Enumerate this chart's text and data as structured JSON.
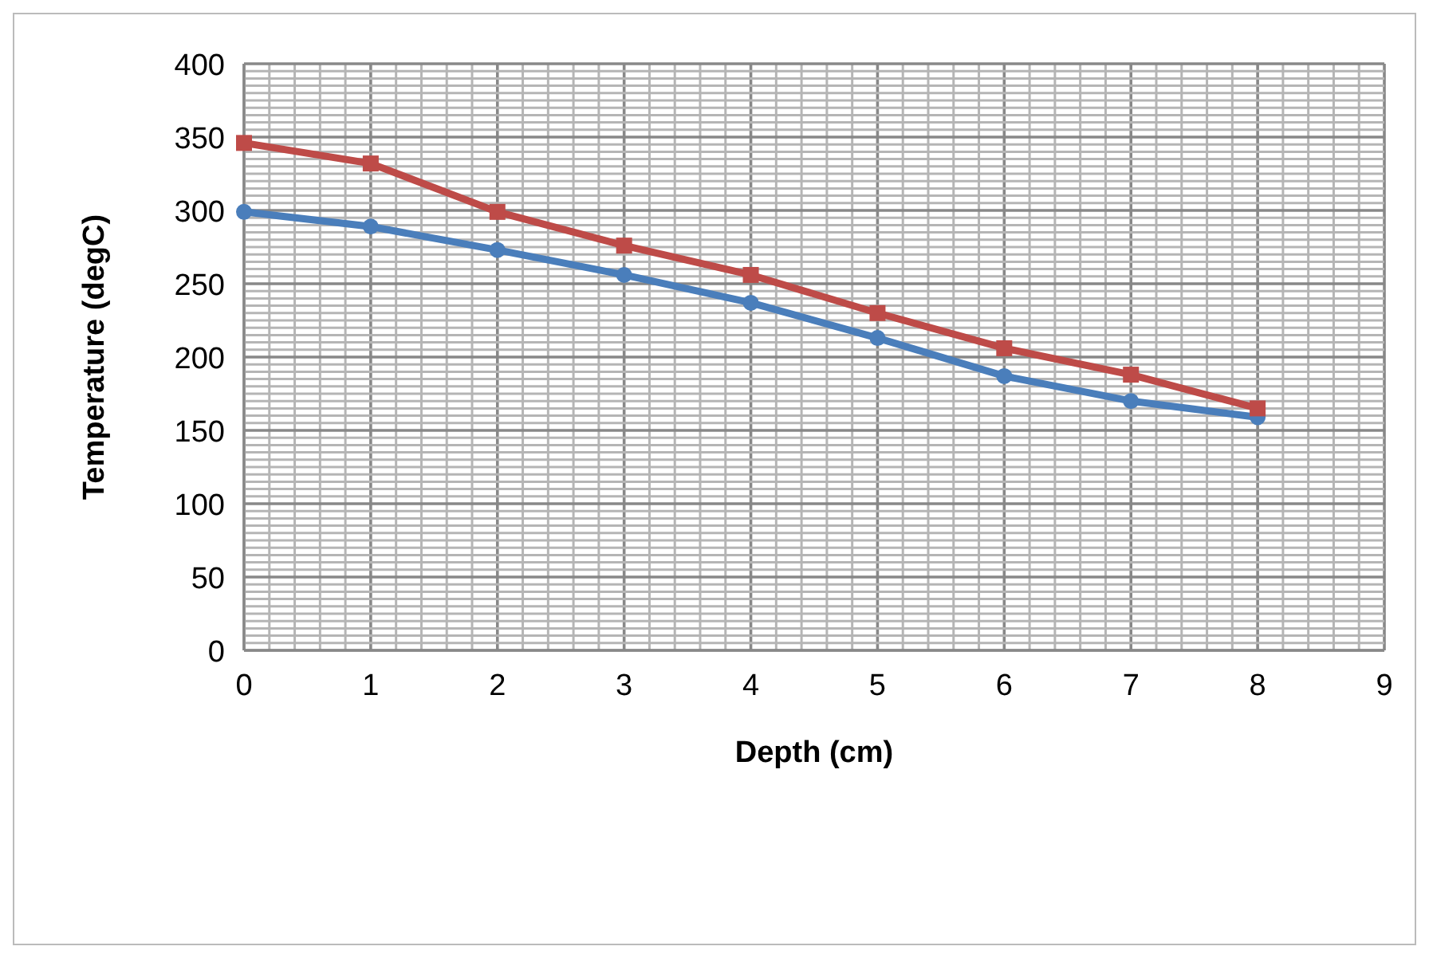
{
  "chart_data": {
    "type": "line",
    "xlabel": "Depth (cm)",
    "ylabel": "Temperature (degC)",
    "x": [
      0,
      1,
      2,
      3,
      4,
      5,
      6,
      7,
      8
    ],
    "series": [
      {
        "color": "#4a7ebb",
        "marker": "circle",
        "values": [
          299,
          289,
          273,
          256,
          237,
          213,
          187,
          170,
          159
        ]
      },
      {
        "color": "#be4b48",
        "marker": "square",
        "values": [
          346,
          332,
          299,
          276,
          256,
          230,
          206,
          188,
          165
        ]
      }
    ],
    "xlim": [
      0,
      9
    ],
    "ylim": [
      0,
      400
    ],
    "grid": true,
    "legend": false,
    "line_style": "solid",
    "xticks": [
      0,
      {
        "value": 0.2,
        "label": null
      },
      {
        "value": 0.4,
        "label": null
      },
      {
        "value": 0.6,
        "label": null
      },
      {
        "value": 0.8,
        "label": null
      },
      1,
      {
        "value": 1.2,
        "label": null
      },
      {
        "value": 1.4,
        "label": null
      },
      {
        "value": 1.6,
        "label": null
      },
      {
        "value": 1.8,
        "label": null
      },
      2,
      {
        "value": 2.2,
        "label": null
      },
      {
        "value": 2.4,
        "label": null
      },
      {
        "value": 2.6,
        "label": null
      },
      {
        "value": 2.8,
        "label": null
      },
      3,
      {
        "value": 3.2,
        "label": null
      },
      {
        "value": 3.4,
        "label": null
      },
      {
        "value": 3.6,
        "label": null
      },
      {
        "value": 3.8,
        "label": null
      },
      4,
      {
        "value": 4.2,
        "label": null
      },
      {
        "value": 4.4,
        "label": null
      },
      {
        "value": 4.6,
        "label": null
      },
      {
        "value": 4.8,
        "label": null
      },
      5,
      {
        "value": 5.2,
        "label": null
      },
      {
        "value": 5.4,
        "label": null
      },
      {
        "value": 5.6,
        "label": null
      },
      {
        "value": 5.8,
        "label": null
      },
      6,
      {
        "value": 6.2,
        "label": null
      },
      {
        "value": 6.4,
        "label": null
      },
      {
        "value": 6.6,
        "label": null
      },
      {
        "value": 6.8,
        "label": null
      },
      7,
      {
        "value": 7.2,
        "label": null
      },
      {
        "value": 7.4,
        "label": null
      },
      {
        "value": 7.6,
        "label": null
      },
      {
        "value": 7.8,
        "label": null
      },
      8,
      {
        "value": 8.2,
        "label": null
      },
      {
        "value": 8.4,
        "label": null
      },
      {
        "value": 8.6,
        "label": null
      },
      {
        "value": 8.8,
        "label": null
      },
      9
    ],
    "yticks": [
      0,
      {
        "value": 5,
        "label": null
      },
      {
        "value": 10,
        "label": null
      },
      {
        "value": 15,
        "label": null
      },
      {
        "value": 20,
        "label": null
      },
      {
        "value": 25,
        "label": null
      },
      {
        "value": 30,
        "label": null
      },
      {
        "value": 35,
        "label": null
      },
      {
        "value": 40,
        "label": null
      },
      {
        "value": 45,
        "label": null
      },
      50,
      {
        "value": 55,
        "label": null
      },
      {
        "value": 60,
        "label": null
      },
      {
        "value": 65,
        "label": null
      },
      {
        "value": 70,
        "label": null
      },
      {
        "value": 75,
        "label": null
      },
      {
        "value": 80,
        "label": null
      },
      {
        "value": 85,
        "label": null
      },
      {
        "value": 90,
        "label": null
      },
      {
        "value": 95,
        "label": null
      },
      100,
      {
        "value": 105,
        "label": null
      },
      {
        "value": 110,
        "label": null
      },
      {
        "value": 115,
        "label": null
      },
      {
        "value": 120,
        "label": null
      },
      {
        "value": 125,
        "label": null
      },
      {
        "value": 130,
        "label": null
      },
      {
        "value": 135,
        "label": null
      },
      {
        "value": 140,
        "label": null
      },
      {
        "value": 145,
        "label": null
      },
      150,
      {
        "value": 155,
        "label": null
      },
      {
        "value": 160,
        "label": null
      },
      {
        "value": 165,
        "label": null
      },
      {
        "value": 170,
        "label": null
      },
      {
        "value": 175,
        "label": null
      },
      {
        "value": 180,
        "label": null
      },
      {
        "value": 185,
        "label": null
      },
      {
        "value": 190,
        "label": null
      },
      {
        "value": 195,
        "label": null
      },
      200,
      {
        "value": 205,
        "label": null
      },
      {
        "value": 210,
        "label": null
      },
      {
        "value": 215,
        "label": null
      },
      {
        "value": 220,
        "label": null
      },
      {
        "value": 225,
        "label": null
      },
      {
        "value": 230,
        "label": null
      },
      {
        "value": 235,
        "label": null
      },
      {
        "value": 240,
        "label": null
      },
      {
        "value": 245,
        "label": null
      },
      250,
      {
        "value": 255,
        "label": null
      },
      {
        "value": 260,
        "label": null
      },
      {
        "value": 265,
        "label": null
      },
      {
        "value": 270,
        "label": null
      },
      {
        "value": 275,
        "label": null
      },
      {
        "value": 280,
        "label": null
      },
      {
        "value": 285,
        "label": null
      },
      {
        "value": 290,
        "label": null
      },
      {
        "value": 295,
        "label": null
      },
      300,
      {
        "value": 305,
        "label": null
      },
      {
        "value": 310,
        "label": null
      },
      {
        "value": 315,
        "label": null
      },
      {
        "value": 320,
        "label": null
      },
      {
        "value": 325,
        "label": null
      },
      {
        "value": 330,
        "label": null
      },
      {
        "value": 335,
        "label": null
      },
      {
        "value": 340,
        "label": null
      },
      {
        "value": 345,
        "label": null
      },
      350,
      {
        "value": 355,
        "label": null
      },
      {
        "value": 360,
        "label": null
      },
      {
        "value": 365,
        "label": null
      },
      {
        "value": 370,
        "label": null
      },
      {
        "value": 375,
        "label": null
      },
      {
        "value": 380,
        "label": null
      },
      {
        "value": 385,
        "label": null
      },
      {
        "value": 390,
        "label": null
      },
      {
        "value": 395,
        "label": null
      },
      400
    ]
  }
}
